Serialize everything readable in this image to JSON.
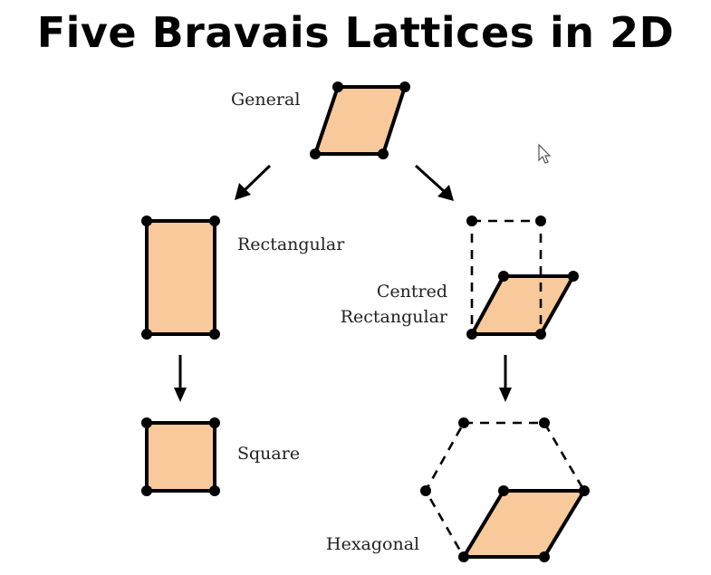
{
  "title": "Five Bravais Lattices in 2D",
  "labels": {
    "general": "General",
    "rectangular": "Rectangular",
    "centred_line1": "Centred",
    "centred_line2": "Rectangular",
    "square": "Square",
    "hexagonal": "Hexagonal"
  },
  "colors": {
    "cell_fill": "#f8c99b",
    "outline": "#000000"
  },
  "icons": [
    "mouse-pointer-icon"
  ]
}
